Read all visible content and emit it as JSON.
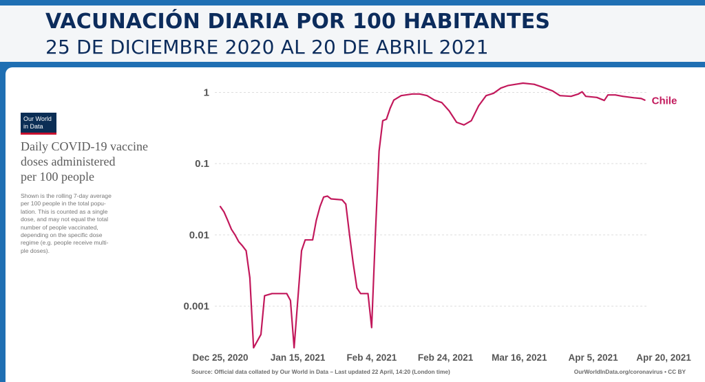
{
  "header": {
    "title": "VACUNACIÓN DIARIA POR 100 HABITANTES",
    "subtitle": "25 DE DICIEMBRE 2020 AL 20 DE ABRIL 2021"
  },
  "logo": {
    "line1": "Our World",
    "line2": "in Data",
    "colors": {
      "background": "#0b2e55",
      "underline": "#c8102e"
    }
  },
  "heading_lines": [
    "Daily COVID-19 vaccine",
    "doses administered",
    "per 100 people"
  ],
  "note_lines": [
    "Shown is the rolling 7-day average",
    "per 100 people in the total popu-",
    "lation. This is counted as a single",
    "dose, and may not equal the total",
    "number of people vaccinated,",
    "depending on the specific dose",
    "regime (e.g. people receive multi-",
    "ple doses)."
  ],
  "footer": {
    "source": "Source: Official data collated by Our World in Data – Last updated 22 April, 14:20 (London time)",
    "url": "OurWorldInData.org/coronavirus • CC BY"
  },
  "chart_data": {
    "type": "line",
    "y_scale": "log",
    "ylim": [
      0.00025,
      1.8
    ],
    "xlim": [
      "2020-12-25",
      "2021-04-20"
    ],
    "y_ticks": [
      {
        "value": 1,
        "label": "1"
      },
      {
        "value": 0.1,
        "label": "0.1"
      },
      {
        "value": 0.01,
        "label": "0.01"
      },
      {
        "value": 0.001,
        "label": "0.001"
      }
    ],
    "x_ticks": [
      {
        "date": "2020-12-25",
        "label": "Dec 25, 2020"
      },
      {
        "date": "2021-01-15",
        "label": "Jan 15, 2021"
      },
      {
        "date": "2021-02-04",
        "label": "Feb 4, 2021"
      },
      {
        "date": "2021-02-24",
        "label": "Feb 24, 2021"
      },
      {
        "date": "2021-03-16",
        "label": "Mar 16, 2021"
      },
      {
        "date": "2021-04-05",
        "label": "Apr 5, 2021"
      },
      {
        "date": "2021-04-20",
        "label": "Apr 20, 2021"
      }
    ],
    "grid": true,
    "series": [
      {
        "name": "Chile",
        "color": "#c2185b",
        "points": [
          [
            "2020-12-25",
            0.025
          ],
          [
            "2020-12-26",
            0.021
          ],
          [
            "2020-12-27",
            0.016
          ],
          [
            "2020-12-28",
            0.012
          ],
          [
            "2020-12-29",
            0.01
          ],
          [
            "2020-12-30",
            0.008
          ],
          [
            "2020-12-31",
            0.007
          ],
          [
            "2021-01-01",
            0.006
          ],
          [
            "2021-01-02",
            0.0025
          ],
          [
            "2021-01-03",
            0.00026
          ],
          [
            "2021-01-05",
            0.0004
          ],
          [
            "2021-01-06",
            0.0014
          ],
          [
            "2021-01-08",
            0.0015
          ],
          [
            "2021-01-12",
            0.0015
          ],
          [
            "2021-01-13",
            0.0012
          ],
          [
            "2021-01-14",
            0.00026
          ],
          [
            "2021-01-16",
            0.006
          ],
          [
            "2021-01-17",
            0.0085
          ],
          [
            "2021-01-19",
            0.0085
          ],
          [
            "2021-01-20",
            0.016
          ],
          [
            "2021-01-21",
            0.025
          ],
          [
            "2021-01-22",
            0.034
          ],
          [
            "2021-01-23",
            0.035
          ],
          [
            "2021-01-24",
            0.032
          ],
          [
            "2021-01-27",
            0.031
          ],
          [
            "2021-01-28",
            0.027
          ],
          [
            "2021-01-29",
            0.01
          ],
          [
            "2021-01-30",
            0.004
          ],
          [
            "2021-01-31",
            0.0018
          ],
          [
            "2021-02-01",
            0.0015
          ],
          [
            "2021-02-02",
            0.0015
          ],
          [
            "2021-02-03",
            0.0015
          ],
          [
            "2021-02-04",
            0.0005
          ],
          [
            "2021-02-05",
            0.01
          ],
          [
            "2021-02-06",
            0.15
          ],
          [
            "2021-02-07",
            0.4
          ],
          [
            "2021-02-08",
            0.42
          ],
          [
            "2021-02-09",
            0.6
          ],
          [
            "2021-02-10",
            0.78
          ],
          [
            "2021-02-12",
            0.9
          ],
          [
            "2021-02-15",
            0.95
          ],
          [
            "2021-02-17",
            0.95
          ],
          [
            "2021-02-19",
            0.9
          ],
          [
            "2021-02-21",
            0.78
          ],
          [
            "2021-02-23",
            0.72
          ],
          [
            "2021-02-25",
            0.55
          ],
          [
            "2021-02-27",
            0.38
          ],
          [
            "2021-03-01",
            0.35
          ],
          [
            "2021-03-03",
            0.4
          ],
          [
            "2021-03-05",
            0.65
          ],
          [
            "2021-03-07",
            0.9
          ],
          [
            "2021-03-09",
            0.97
          ],
          [
            "2021-03-11",
            1.15
          ],
          [
            "2021-03-13",
            1.25
          ],
          [
            "2021-03-15",
            1.3
          ],
          [
            "2021-03-17",
            1.35
          ],
          [
            "2021-03-20",
            1.3
          ],
          [
            "2021-03-22",
            1.2
          ],
          [
            "2021-03-25",
            1.05
          ],
          [
            "2021-03-27",
            0.9
          ],
          [
            "2021-03-30",
            0.88
          ],
          [
            "2021-04-01",
            0.95
          ],
          [
            "2021-04-02",
            1.02
          ],
          [
            "2021-04-03",
            0.88
          ],
          [
            "2021-04-06",
            0.85
          ],
          [
            "2021-04-08",
            0.77
          ],
          [
            "2021-04-09",
            0.92
          ],
          [
            "2021-04-11",
            0.92
          ],
          [
            "2021-04-13",
            0.88
          ],
          [
            "2021-04-16",
            0.84
          ],
          [
            "2021-04-18",
            0.82
          ],
          [
            "2021-04-19",
            0.78
          ]
        ]
      }
    ]
  }
}
